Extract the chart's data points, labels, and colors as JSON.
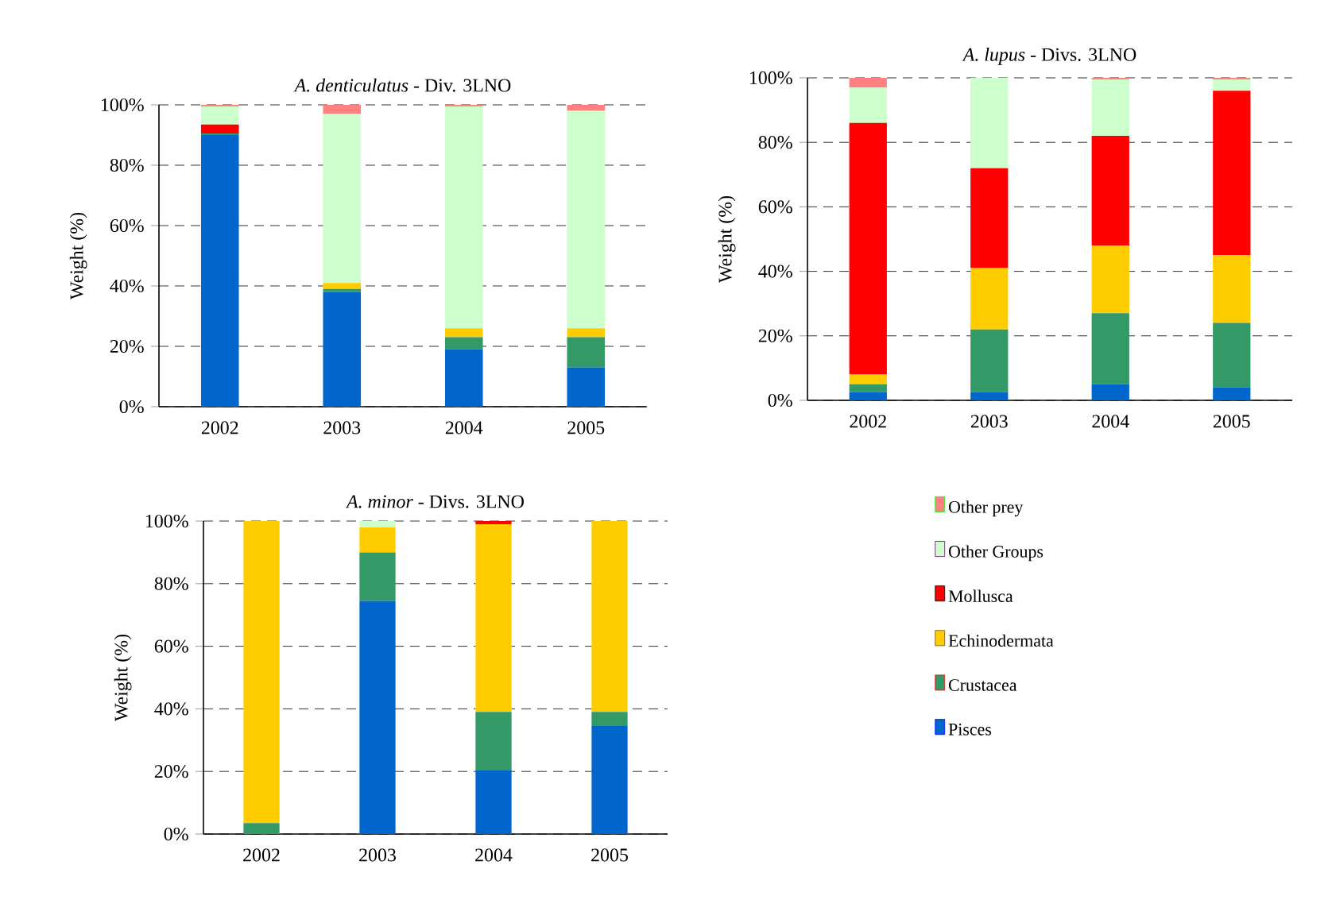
{
  "chart_data": [
    {
      "type": "bar",
      "stacked": true,
      "title": "*A. denticulatus* - Div. 3LNO",
      "ylabel": "Weight (%)",
      "categories": [
        "2002",
        "2003",
        "2004",
        "2005"
      ],
      "ylim": [
        0,
        100
      ],
      "yticks": [
        {
          "value": 0,
          "label": "0%"
        },
        {
          "value": 20,
          "label": "20%"
        },
        {
          "value": 40,
          "label": "40%"
        },
        {
          "value": 60,
          "label": "60%"
        },
        {
          "value": 80,
          "label": "80%"
        },
        {
          "value": 100,
          "label": "100%"
        }
      ],
      "grid": "y",
      "series": [
        {
          "color": "#0066cc",
          "values": [
            90,
            38,
            19,
            13
          ]
        },
        {
          "color": "#339966",
          "values": [
            0.5,
            1,
            4,
            10
          ]
        },
        {
          "color": "#ffcc00",
          "values": [
            0,
            2,
            3,
            3
          ]
        },
        {
          "color": "#ff0000",
          "values": [
            3,
            0,
            0,
            0
          ]
        },
        {
          "color": "#ccffcc",
          "values": [
            6,
            56,
            73.5,
            72
          ]
        },
        {
          "color": "#ff8080",
          "values": [
            0.5,
            3,
            0.5,
            2
          ]
        }
      ]
    },
    {
      "type": "bar",
      "stacked": true,
      "title": "*A. lupus* - Divs. 3LNO",
      "ylabel": "Weight (%)",
      "categories": [
        "2002",
        "2003",
        "2004",
        "2005"
      ],
      "ylim": [
        0,
        100
      ],
      "yticks": [
        {
          "value": 0,
          "label": "0%"
        },
        {
          "value": 20,
          "label": "20%"
        },
        {
          "value": 40,
          "label": "40%"
        },
        {
          "value": 60,
          "label": "60%"
        },
        {
          "value": 80,
          "label": "80%"
        },
        {
          "value": 100,
          "label": "100%"
        }
      ],
      "grid": "y",
      "series": [
        {
          "color": "#0066cc",
          "values": [
            2.5,
            2.5,
            5,
            4
          ]
        },
        {
          "color": "#339966",
          "values": [
            2.5,
            19.5,
            22,
            20
          ]
        },
        {
          "color": "#ffcc00",
          "values": [
            3,
            19,
            21,
            21
          ]
        },
        {
          "color": "#ff0000",
          "values": [
            78,
            31,
            34,
            51
          ]
        },
        {
          "color": "#ccffcc",
          "values": [
            11,
            28,
            17.5,
            3.5
          ]
        },
        {
          "color": "#ff8080",
          "values": [
            3,
            0,
            0.5,
            0.5
          ]
        }
      ]
    },
    {
      "type": "bar",
      "stacked": true,
      "title": "*A. minor* - Divs. 3LNO",
      "ylabel": "Weight (%)",
      "categories": [
        "2002",
        "2003",
        "2004",
        "2005"
      ],
      "ylim": [
        0,
        100
      ],
      "yticks": [
        {
          "value": 0,
          "label": "0%"
        },
        {
          "value": 20,
          "label": "20%"
        },
        {
          "value": 40,
          "label": "40%"
        },
        {
          "value": 60,
          "label": "60%"
        },
        {
          "value": 80,
          "label": "80%"
        },
        {
          "value": 100,
          "label": "100%"
        }
      ],
      "grid": "y",
      "legend": "right",
      "series": [
        {
          "name": "Pisces",
          "color": "#0066cc",
          "values": [
            0,
            74.5,
            20.5,
            34.5
          ]
        },
        {
          "name": "Crustacea",
          "color": "#339966",
          "values": [
            3.5,
            15.5,
            18.5,
            4.5
          ]
        },
        {
          "name": "Echinodermata",
          "color": "#ffcc00",
          "values": [
            96.5,
            8,
            60,
            61
          ]
        },
        {
          "name": "Mollusca",
          "color": "#ff0000",
          "values": [
            0,
            0,
            1,
            0
          ]
        },
        {
          "name": "Other Groups",
          "color": "#ccffcc",
          "values": [
            0,
            2,
            0,
            0
          ]
        },
        {
          "name": "Other prey",
          "color": "#ff8080",
          "values": [
            0,
            0,
            0,
            0
          ]
        }
      ]
    }
  ]
}
